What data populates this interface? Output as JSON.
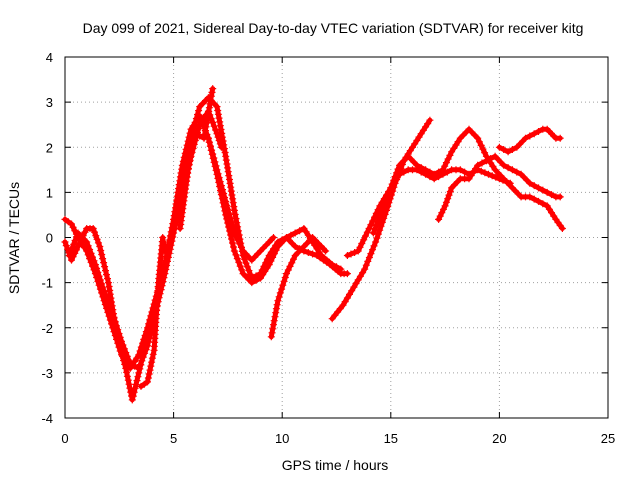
{
  "chart_data": {
    "type": "scatter",
    "title": "Day 099 of 2021, Sidereal Day-to-day VTEC variation (SDTVAR) for receiver kitg",
    "xlabel": "GPS time / hours",
    "ylabel": "SDTVAR / TECUs",
    "xlim": [
      0,
      25
    ],
    "ylim": [
      -4,
      4
    ],
    "xticks": [
      0,
      5,
      10,
      15,
      20,
      25
    ],
    "yticks": [
      -4,
      -3,
      -2,
      -1,
      0,
      1,
      2,
      3,
      4
    ],
    "grid": true,
    "marker": "+",
    "color": "#ff0000",
    "series": [
      {
        "points": [
          [
            0.0,
            0.4
          ],
          [
            0.3,
            0.3
          ],
          [
            0.6,
            0.0
          ],
          [
            1.0,
            -0.3
          ],
          [
            1.4,
            -0.8
          ],
          [
            1.8,
            -1.4
          ],
          [
            2.2,
            -2.0
          ],
          [
            2.6,
            -2.6
          ],
          [
            3.0,
            -2.9
          ],
          [
            3.4,
            -2.6
          ],
          [
            3.8,
            -2.0
          ],
          [
            4.2,
            -1.3
          ],
          [
            4.6,
            -0.6
          ],
          [
            5.0,
            0.3
          ],
          [
            5.4,
            1.2
          ],
          [
            5.8,
            2.2
          ],
          [
            6.2,
            2.9
          ],
          [
            6.6,
            3.1
          ],
          [
            7.0,
            2.9
          ],
          [
            7.4,
            1.8
          ],
          [
            7.8,
            0.6
          ],
          [
            8.2,
            -0.4
          ],
          [
            8.6,
            -0.9
          ],
          [
            9.0,
            -0.8
          ],
          [
            9.4,
            -0.4
          ],
          [
            9.8,
            -0.1
          ],
          [
            10.2,
            0.0
          ],
          [
            10.6,
            -0.2
          ],
          [
            11.0,
            -0.3
          ],
          [
            11.6,
            -0.4
          ],
          [
            12.2,
            -0.6
          ],
          [
            12.7,
            -0.8
          ],
          [
            13.0,
            -0.8
          ]
        ]
      },
      {
        "points": [
          [
            0.0,
            -0.1
          ],
          [
            0.3,
            -0.5
          ],
          [
            0.6,
            -0.2
          ],
          [
            1.0,
            0.2
          ],
          [
            1.3,
            0.2
          ],
          [
            1.6,
            -0.2
          ],
          [
            2.0,
            -1.0
          ],
          [
            2.4,
            -2.2
          ],
          [
            2.8,
            -2.9
          ],
          [
            3.1,
            -3.6
          ],
          [
            3.4,
            -3.0
          ],
          [
            3.8,
            -2.2
          ],
          [
            4.2,
            -1.5
          ],
          [
            4.6,
            -0.6
          ],
          [
            5.0,
            0.4
          ],
          [
            5.4,
            1.6
          ],
          [
            5.8,
            2.4
          ],
          [
            6.2,
            2.7
          ],
          [
            6.6,
            2.2
          ],
          [
            7.0,
            1.4
          ],
          [
            7.4,
            0.5
          ],
          [
            7.8,
            -0.3
          ],
          [
            8.2,
            -0.8
          ],
          [
            8.6,
            -1.0
          ],
          [
            9.0,
            -0.9
          ],
          [
            9.4,
            -0.6
          ],
          [
            9.8,
            -0.2
          ],
          [
            10.2,
            0.0
          ],
          [
            10.6,
            0.1
          ],
          [
            11.0,
            0.2
          ],
          [
            11.4,
            -0.1
          ],
          [
            11.8,
            -0.4
          ],
          [
            12.3,
            -0.6
          ],
          [
            12.7,
            -0.7
          ]
        ]
      },
      {
        "points": [
          [
            0.2,
            -0.4
          ],
          [
            0.6,
            0.1
          ],
          [
            1.0,
            -0.1
          ],
          [
            1.4,
            -0.6
          ],
          [
            1.8,
            -1.2
          ],
          [
            2.2,
            -1.7
          ],
          [
            2.6,
            -2.3
          ],
          [
            3.0,
            -2.8
          ],
          [
            3.4,
            -2.9
          ],
          [
            3.8,
            -2.4
          ],
          [
            4.2,
            -1.6
          ],
          [
            4.6,
            -0.8
          ],
          [
            5.0,
            0.1
          ],
          [
            5.4,
            0.9
          ],
          [
            5.8,
            1.8
          ],
          [
            6.2,
            2.5
          ],
          [
            6.6,
            2.8
          ],
          [
            7.0,
            2.3
          ],
          [
            7.2,
            2.0
          ]
        ]
      },
      {
        "points": [
          [
            3.5,
            -3.3
          ],
          [
            3.8,
            -3.2
          ],
          [
            4.1,
            -2.5
          ],
          [
            4.3,
            -1.0
          ],
          [
            4.5,
            0.0
          ],
          [
            4.6,
            -0.3
          ]
        ]
      },
      {
        "points": [
          [
            5.3,
            0.2
          ],
          [
            5.7,
            1.6
          ],
          [
            6.0,
            2.3
          ],
          [
            6.4,
            2.2
          ],
          [
            6.8,
            3.3
          ]
        ]
      },
      {
        "points": [
          [
            6.6,
            2.2
          ],
          [
            7.0,
            1.5
          ],
          [
            7.4,
            0.8
          ],
          [
            7.8,
            0.1
          ],
          [
            8.2,
            -0.3
          ],
          [
            8.6,
            -0.5
          ],
          [
            9.0,
            -0.3
          ],
          [
            9.4,
            -0.1
          ],
          [
            9.6,
            0.0
          ]
        ]
      },
      {
        "points": [
          [
            9.5,
            -2.2
          ],
          [
            9.8,
            -1.4
          ],
          [
            10.2,
            -0.8
          ],
          [
            10.6,
            -0.4
          ],
          [
            11.0,
            -0.2
          ],
          [
            11.4,
            0.0
          ],
          [
            11.8,
            -0.2
          ],
          [
            12.0,
            -0.3
          ]
        ]
      },
      {
        "points": [
          [
            12.3,
            -1.8
          ],
          [
            12.8,
            -1.5
          ],
          [
            13.3,
            -1.1
          ],
          [
            13.8,
            -0.7
          ],
          [
            14.3,
            -0.1
          ],
          [
            14.8,
            0.6
          ],
          [
            15.2,
            1.2
          ],
          [
            15.6,
            1.7
          ],
          [
            16.0,
            2.0
          ],
          [
            16.4,
            2.3
          ],
          [
            16.8,
            2.6
          ]
        ]
      },
      {
        "points": [
          [
            13.0,
            -0.4
          ],
          [
            13.5,
            -0.3
          ],
          [
            14.0,
            0.2
          ],
          [
            14.5,
            0.7
          ],
          [
            15.0,
            1.1
          ],
          [
            15.4,
            1.4
          ],
          [
            15.8,
            1.5
          ],
          [
            16.2,
            1.5
          ],
          [
            16.6,
            1.4
          ],
          [
            17.0,
            1.3
          ],
          [
            17.4,
            1.4
          ],
          [
            17.8,
            1.5
          ],
          [
            18.2,
            1.5
          ],
          [
            18.6,
            1.4
          ],
          [
            19.0,
            1.5
          ],
          [
            19.5,
            1.4
          ],
          [
            20.0,
            1.3
          ],
          [
            20.5,
            1.2
          ]
        ]
      },
      {
        "points": [
          [
            14.2,
            0.1
          ],
          [
            14.6,
            0.6
          ],
          [
            15.0,
            1.1
          ],
          [
            15.4,
            1.6
          ],
          [
            15.8,
            1.8
          ],
          [
            16.2,
            1.6
          ],
          [
            16.6,
            1.5
          ],
          [
            17.0,
            1.4
          ],
          [
            17.4,
            1.5
          ],
          [
            17.8,
            1.9
          ],
          [
            18.2,
            2.2
          ],
          [
            18.6,
            2.4
          ],
          [
            19.0,
            2.2
          ],
          [
            19.4,
            1.8
          ],
          [
            19.8,
            1.5
          ],
          [
            20.2,
            1.3
          ],
          [
            20.6,
            1.1
          ],
          [
            21.0,
            0.9
          ],
          [
            21.4,
            0.9
          ],
          [
            21.8,
            0.8
          ],
          [
            22.2,
            0.7
          ],
          [
            22.6,
            0.4
          ],
          [
            22.9,
            0.2
          ]
        ]
      },
      {
        "points": [
          [
            17.2,
            0.4
          ],
          [
            17.5,
            0.7
          ],
          [
            17.8,
            1.1
          ],
          [
            18.2,
            1.3
          ],
          [
            18.6,
            1.3
          ],
          [
            19.0,
            1.6
          ],
          [
            19.4,
            1.7
          ],
          [
            19.8,
            1.8
          ],
          [
            20.2,
            1.6
          ],
          [
            20.6,
            1.5
          ],
          [
            21.0,
            1.4
          ],
          [
            21.4,
            1.2
          ],
          [
            21.8,
            1.1
          ],
          [
            22.2,
            1.0
          ],
          [
            22.6,
            0.9
          ],
          [
            22.8,
            0.9
          ]
        ]
      },
      {
        "points": [
          [
            20.0,
            2.0
          ],
          [
            20.4,
            1.9
          ],
          [
            20.8,
            2.0
          ],
          [
            21.2,
            2.2
          ],
          [
            21.6,
            2.3
          ],
          [
            22.0,
            2.4
          ],
          [
            22.2,
            2.4
          ],
          [
            22.4,
            2.3
          ],
          [
            22.6,
            2.2
          ],
          [
            22.8,
            2.2
          ]
        ]
      }
    ]
  }
}
